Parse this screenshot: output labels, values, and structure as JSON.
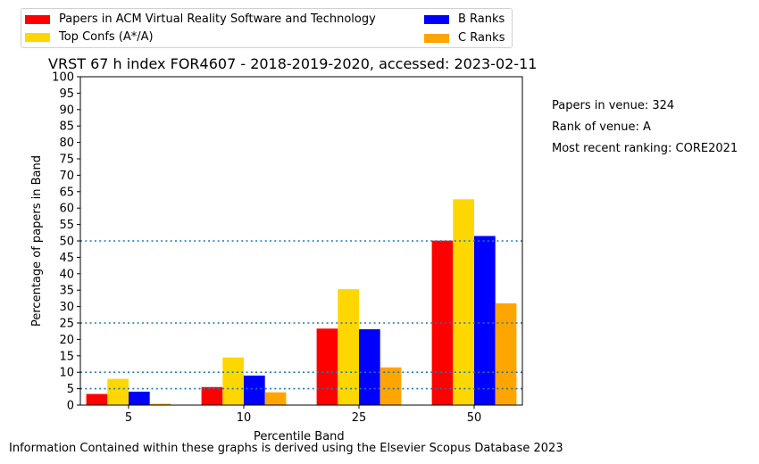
{
  "chart_data": {
    "type": "bar",
    "title": "VRST 67 h index FOR4607 - 2018-2019-2020, accessed: 2023-02-11",
    "xlabel": "Percentile Band",
    "ylabel": "Percentage of papers in Band",
    "categories": [
      "5",
      "10",
      "25",
      "50"
    ],
    "ylim": [
      0,
      100
    ],
    "yticks": [
      0,
      5,
      10,
      15,
      20,
      25,
      30,
      35,
      40,
      45,
      50,
      55,
      60,
      65,
      70,
      75,
      80,
      85,
      90,
      95,
      100
    ],
    "reference_lines": [
      5,
      10,
      25,
      50
    ],
    "grid": false,
    "legend_position": "top",
    "series": [
      {
        "name": "Papers in ACM Virtual Reality Software and Technology",
        "color": "#ff0000",
        "values": [
          3.4,
          5.5,
          23.3,
          50.1
        ]
      },
      {
        "name": "Top Confs (A*/A)",
        "color": "#ffd700",
        "values": [
          8.0,
          14.5,
          35.3,
          62.7
        ]
      },
      {
        "name": "B Ranks",
        "color": "#0000ff",
        "values": [
          4.1,
          9.0,
          23.1,
          51.5
        ]
      },
      {
        "name": "C Ranks",
        "color": "#ffa500",
        "values": [
          0.4,
          3.9,
          11.5,
          31.0
        ]
      }
    ]
  },
  "side_notes": {
    "papers": "Papers in venue: 324",
    "rank": "Rank of venue: A",
    "recent": "Most recent ranking: CORE2021"
  },
  "footnote": "Information Contained within these graphs is derived using the Elsevier Scopus Database 2023"
}
